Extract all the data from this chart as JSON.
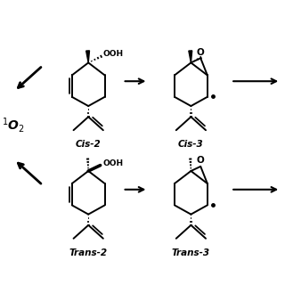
{
  "bg_color": "#ffffff",
  "line_color": "#000000",
  "figsize": [
    3.2,
    3.2
  ],
  "dpi": 100,
  "xlim": [
    0,
    10
  ],
  "ylim": [
    0,
    10
  ]
}
